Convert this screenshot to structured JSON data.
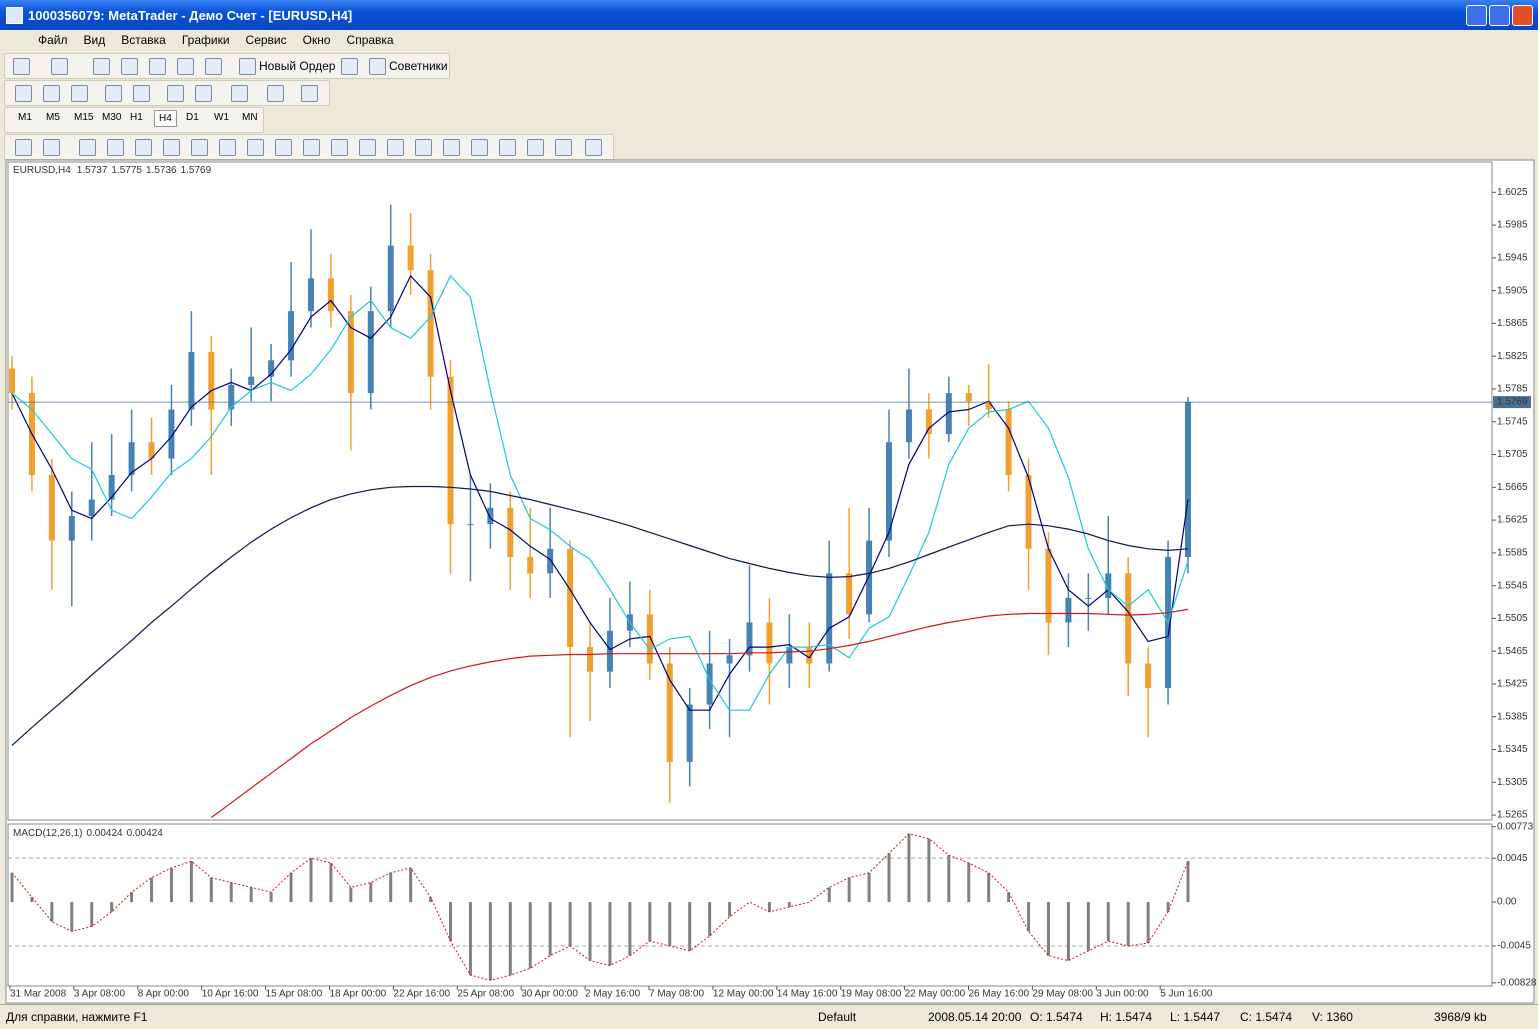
{
  "window": {
    "title": "1000356079: MetaTrader - Демо Счет - [EURUSD,H4]",
    "menu": [
      "Файл",
      "Вид",
      "Вставка",
      "Графики",
      "Сервис",
      "Окно",
      "Справка"
    ],
    "toolbar_buttons": [
      "Новый Ордер",
      "Советники"
    ],
    "timeframes": [
      "M1",
      "M5",
      "M15",
      "M30",
      "H1",
      "H4",
      "D1",
      "W1",
      "MN"
    ],
    "status": [
      "Для справки, нажмите F1",
      "Default",
      "2008.05.14 20:00",
      "O: 1.5474",
      "H: 1.5474",
      "L: 1.5447",
      "C: 1.5474",
      "V: 1360",
      "3968/9 kb"
    ]
  },
  "chart_data": {
    "type": "candlestick",
    "symbol": "EURUSD,H4",
    "readout": [
      1.5737,
      1.5775,
      1.5736,
      1.5769
    ],
    "up_color": "#4682b4",
    "down_color": "#f0a030",
    "ohlc": [
      [
        1.581,
        1.5825,
        1.576,
        1.578
      ],
      [
        1.578,
        1.58,
        1.566,
        1.568
      ],
      [
        1.568,
        1.57,
        1.554,
        1.56
      ],
      [
        1.56,
        1.566,
        1.552,
        1.563
      ],
      [
        1.563,
        1.572,
        1.56,
        1.565
      ],
      [
        1.565,
        1.573,
        1.563,
        1.568
      ],
      [
        1.568,
        1.576,
        1.566,
        1.572
      ],
      [
        1.572,
        1.575,
        1.568,
        1.57
      ],
      [
        1.57,
        1.579,
        1.568,
        1.576
      ],
      [
        1.576,
        1.588,
        1.574,
        1.583
      ],
      [
        1.583,
        1.585,
        1.568,
        1.576
      ],
      [
        1.576,
        1.581,
        1.574,
        1.579
      ],
      [
        1.579,
        1.586,
        1.577,
        1.58
      ],
      [
        1.58,
        1.584,
        1.577,
        1.582
      ],
      [
        1.582,
        1.594,
        1.58,
        1.588
      ],
      [
        1.588,
        1.598,
        1.586,
        1.592
      ],
      [
        1.592,
        1.595,
        1.586,
        1.588
      ],
      [
        1.588,
        1.59,
        1.571,
        1.578
      ],
      [
        1.578,
        1.591,
        1.576,
        1.588
      ],
      [
        1.588,
        1.601,
        1.586,
        1.596
      ],
      [
        1.596,
        1.6,
        1.59,
        1.593
      ],
      [
        1.593,
        1.595,
        1.576,
        1.58
      ],
      [
        1.58,
        1.582,
        1.556,
        1.562
      ],
      [
        1.562,
        1.568,
        1.555,
        1.562
      ],
      [
        1.562,
        1.567,
        1.559,
        1.564
      ],
      [
        1.564,
        1.566,
        1.554,
        1.558
      ],
      [
        1.558,
        1.564,
        1.553,
        1.556
      ],
      [
        1.556,
        1.564,
        1.553,
        1.559
      ],
      [
        1.559,
        1.56,
        1.536,
        1.547
      ],
      [
        1.547,
        1.55,
        1.538,
        1.544
      ],
      [
        1.544,
        1.553,
        1.542,
        1.549
      ],
      [
        1.549,
        1.555,
        1.547,
        1.551
      ],
      [
        1.551,
        1.554,
        1.543,
        1.545
      ],
      [
        1.545,
        1.547,
        1.528,
        1.533
      ],
      [
        1.533,
        1.542,
        1.53,
        1.54
      ],
      [
        1.54,
        1.549,
        1.537,
        1.545
      ],
      [
        1.545,
        1.548,
        1.536,
        1.546
      ],
      [
        1.546,
        1.557,
        1.544,
        1.55
      ],
      [
        1.55,
        1.553,
        1.54,
        1.545
      ],
      [
        1.545,
        1.551,
        1.542,
        1.547
      ],
      [
        1.547,
        1.55,
        1.542,
        1.545
      ],
      [
        1.545,
        1.56,
        1.544,
        1.556
      ],
      [
        1.556,
        1.564,
        1.548,
        1.551
      ],
      [
        1.551,
        1.564,
        1.55,
        1.56
      ],
      [
        1.56,
        1.576,
        1.558,
        1.572
      ],
      [
        1.572,
        1.581,
        1.57,
        1.576
      ],
      [
        1.576,
        1.578,
        1.57,
        1.573
      ],
      [
        1.573,
        1.58,
        1.572,
        1.578
      ],
      [
        1.578,
        1.579,
        1.574,
        1.577
      ],
      [
        1.577,
        1.5815,
        1.575,
        1.576
      ],
      [
        1.576,
        1.577,
        1.566,
        1.568
      ],
      [
        1.568,
        1.57,
        1.554,
        1.559
      ],
      [
        1.559,
        1.561,
        1.546,
        1.55
      ],
      [
        1.55,
        1.556,
        1.547,
        1.553
      ],
      [
        1.553,
        1.556,
        1.549,
        1.553
      ],
      [
        1.553,
        1.563,
        1.551,
        1.556
      ],
      [
        1.556,
        1.558,
        1.541,
        1.545
      ],
      [
        1.545,
        1.547,
        1.536,
        1.542
      ],
      [
        1.542,
        1.56,
        1.54,
        1.558
      ],
      [
        1.558,
        1.5775,
        1.556,
        1.5769
      ]
    ],
    "series": [
      {
        "color": "#000080",
        "values": [
          1.578,
          1.573,
          1.5687,
          1.5637,
          1.5627,
          1.5653,
          1.5683,
          1.57,
          1.5727,
          1.5763,
          1.5783,
          1.5793,
          1.5783,
          1.5803,
          1.5833,
          1.5873,
          1.5893,
          1.586,
          1.5847,
          1.5873,
          1.5923,
          1.5897,
          1.5783,
          1.568,
          1.5627,
          1.5613,
          1.5593,
          1.5577,
          1.554,
          1.55,
          1.5467,
          1.548,
          1.5483,
          1.543,
          1.5393,
          1.5393,
          1.5437,
          1.547,
          1.547,
          1.5473,
          1.5457,
          1.5493,
          1.5507,
          1.5557,
          1.561,
          1.5693,
          1.5737,
          1.5757,
          1.576,
          1.577,
          1.5737,
          1.5677,
          1.559,
          1.554,
          1.552,
          1.554,
          1.5513,
          1.5477,
          1.5483,
          1.565
        ]
      },
      {
        "color": "#20c8d8",
        "values": [
          1.578,
          1.576,
          1.573,
          1.57,
          1.5687,
          1.5637,
          1.5627,
          1.5653,
          1.5683,
          1.57,
          1.5727,
          1.5763,
          1.5783,
          1.5793,
          1.5783,
          1.5803,
          1.5833,
          1.5873,
          1.5893,
          1.586,
          1.5847,
          1.5873,
          1.5923,
          1.5897,
          1.5783,
          1.568,
          1.5627,
          1.5613,
          1.5593,
          1.5577,
          1.554,
          1.55,
          1.5467,
          1.548,
          1.5483,
          1.543,
          1.5393,
          1.5393,
          1.5437,
          1.547,
          1.547,
          1.5473,
          1.5457,
          1.5493,
          1.5507,
          1.5557,
          1.561,
          1.5693,
          1.5737,
          1.5757,
          1.576,
          1.577,
          1.5737,
          1.5677,
          1.559,
          1.554,
          1.552,
          1.554,
          1.55,
          1.5575
        ]
      },
      {
        "color": "#141450",
        "values": [
          1.535,
          1.5372,
          1.5393,
          1.5414,
          1.5436,
          1.5457,
          1.5478,
          1.55,
          1.552,
          1.5541,
          1.5561,
          1.558,
          1.5598,
          1.5614,
          1.5628,
          1.564,
          1.565,
          1.5657,
          1.5662,
          1.5665,
          1.5666,
          1.5666,
          1.5665,
          1.5663,
          1.566,
          1.5655,
          1.565,
          1.5644,
          1.5638,
          1.5632,
          1.5625,
          1.5618,
          1.561,
          1.5602,
          1.5594,
          1.5586,
          1.5578,
          1.5572,
          1.5566,
          1.5561,
          1.5557,
          1.5555,
          1.5556,
          1.556,
          1.5566,
          1.5574,
          1.5583,
          1.5592,
          1.5601,
          1.561,
          1.5618,
          1.562,
          1.5618,
          1.5614,
          1.5608,
          1.56,
          1.5594,
          1.559,
          1.5588,
          1.559
        ]
      },
      {
        "color": "#d01818",
        "values": [
          null,
          null,
          null,
          null,
          null,
          null,
          null,
          null,
          null,
          null,
          1.5262,
          1.528,
          1.5298,
          1.5316,
          1.5334,
          1.5352,
          1.5368,
          1.5384,
          1.5398,
          1.5411,
          1.5423,
          1.5433,
          1.5441,
          1.5447,
          1.5452,
          1.5456,
          1.5459,
          1.546,
          1.5461,
          1.5461,
          1.5462,
          1.5462,
          1.5462,
          1.5462,
          1.5462,
          1.5462,
          1.5462,
          1.5463,
          1.5463,
          1.5464,
          1.5465,
          1.5468,
          1.5472,
          1.5477,
          1.5483,
          1.5489,
          1.5495,
          1.55,
          1.5504,
          1.5508,
          1.551,
          1.5511,
          1.5511,
          1.5511,
          1.5511,
          1.551,
          1.5509,
          1.551,
          1.5512,
          1.5516
        ]
      }
    ],
    "last_price": 1.5769,
    "ylim": [
      1.5259,
      1.6062
    ],
    "yticks": [
      1.6025,
      1.5985,
      1.5945,
      1.5905,
      1.5865,
      1.5825,
      1.5785,
      1.5745,
      1.5705,
      1.5665,
      1.5625,
      1.5585,
      1.5545,
      1.5505,
      1.5465,
      1.5425,
      1.5385,
      1.5345,
      1.5305,
      1.5265
    ],
    "x_labels": [
      "31 Mar 2008",
      "3 Apr 08:00",
      "8 Apr 00:00",
      "10 Apr 16:00",
      "15 Apr 08:00",
      "18 Apr 00:00",
      "22 Apr 16:00",
      "25 Apr 08:00",
      "30 Apr 00:00",
      "2 May 16:00",
      "7 May 08:00",
      "12 May 00:00",
      "14 May 16:00",
      "19 May 08:00",
      "22 May 00:00",
      "26 May 16:00",
      "29 May 08:00",
      "3 Jun 00:00",
      "5 Jun 16:00"
    ],
    "macd": {
      "label": "MACD(12,26,1)",
      "readout": [
        0.00424,
        0.00424
      ],
      "bar_color": "#808080",
      "line_color": "#d01818",
      "values": [
        0.003,
        0.0005,
        -0.002,
        -0.003,
        -0.0025,
        -0.001,
        0.001,
        0.0025,
        0.0035,
        0.0042,
        0.0025,
        0.002,
        0.0015,
        0.001,
        0.003,
        0.0045,
        0.004,
        0.0015,
        0.002,
        0.003,
        0.0035,
        0.0005,
        -0.004,
        -0.0075,
        -0.008,
        -0.0075,
        -0.0068,
        -0.0055,
        -0.0045,
        -0.006,
        -0.0065,
        -0.0055,
        -0.004,
        -0.0045,
        -0.005,
        -0.0035,
        -0.0015,
        0.0,
        -0.001,
        -0.0005,
        0.0,
        0.0015,
        0.0025,
        0.003,
        0.005,
        0.007,
        0.0065,
        0.0048,
        0.004,
        0.003,
        0.001,
        -0.003,
        -0.0055,
        -0.006,
        -0.005,
        -0.004,
        -0.0045,
        -0.0042,
        -0.001,
        0.0042
      ],
      "ylim": [
        -0.0085,
        0.0079
      ],
      "yticks": [
        0.00773,
        0.0045,
        {
          "value": 0,
          "label": "0.00"
        },
        -0.0045,
        -0.00828
      ],
      "levels": [
        0.0045,
        -0.0045
      ]
    }
  }
}
